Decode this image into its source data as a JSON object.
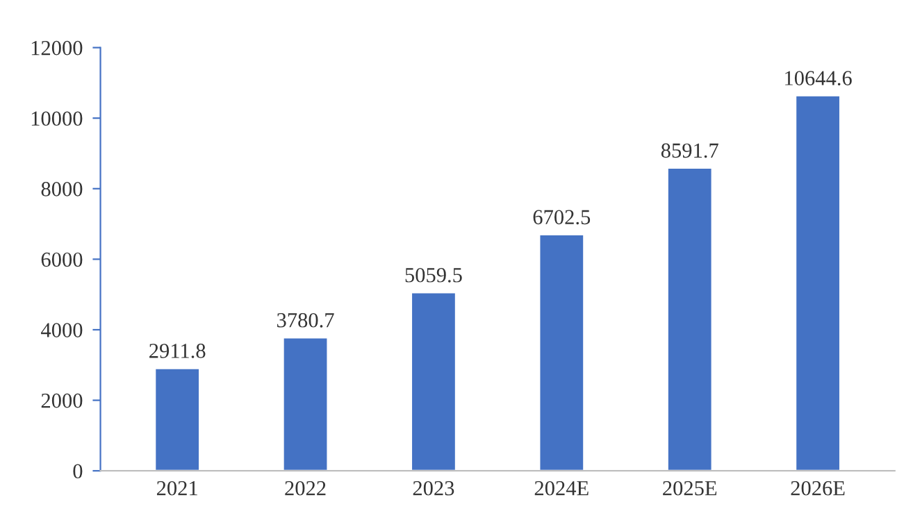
{
  "chart_data": {
    "type": "bar",
    "categories": [
      "2021",
      "2022",
      "2023",
      "2024E",
      "2025E",
      "2026E"
    ],
    "values": [
      2911.8,
      3780.7,
      5059.5,
      6702.5,
      8591.7,
      10644.6
    ],
    "color": "#4472c4",
    "ylim": [
      0,
      12000
    ],
    "yticks": [
      0,
      2000,
      4000,
      6000,
      8000,
      10000,
      12000
    ],
    "data_labels": true,
    "grid": false
  }
}
